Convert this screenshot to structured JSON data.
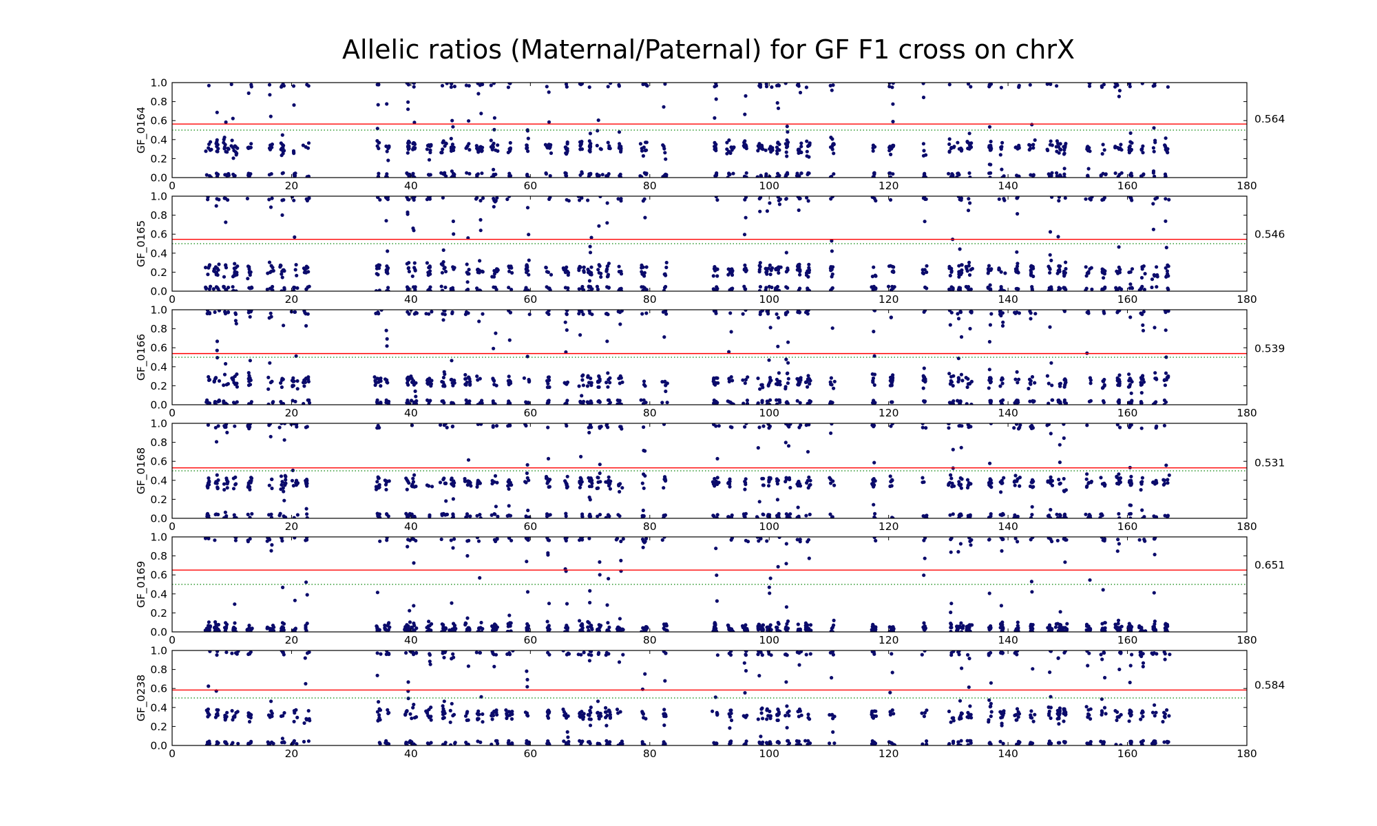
{
  "chart_data": {
    "type": "scatter",
    "title": "Allelic ratios (Maternal/Paternal) for GF F1 cross on chrX",
    "xlim": [
      0,
      180
    ],
    "ylim": [
      0.0,
      1.0
    ],
    "x_ticks": [
      "0",
      "20",
      "40",
      "60",
      "80",
      "100",
      "120",
      "140",
      "160",
      "180"
    ],
    "y_ticks": [
      "0.0",
      "0.2",
      "0.4",
      "0.6",
      "0.8",
      "1.0"
    ],
    "grid": false,
    "colors": {
      "points": "#0b0b6b",
      "mean_line": "#ff0000",
      "reference_line": "#008000",
      "axes": "#000000"
    },
    "reference_line_value": 0.5,
    "clusters_x": [
      6,
      7.5,
      9,
      10.5,
      13,
      16.5,
      18.5,
      20.5,
      22.5,
      34.5,
      36,
      39.5,
      40.5,
      43,
      45.5,
      47,
      49.5,
      51.5,
      54,
      56.5,
      59.5,
      63,
      66,
      68.5,
      70,
      71.5,
      73,
      75,
      79,
      82.5,
      91,
      93.5,
      96,
      98.5,
      100,
      101.5,
      103,
      105,
      106.5,
      110.5,
      117.5,
      120.5,
      126,
      130.5,
      132,
      133.5,
      137,
      139,
      141.5,
      144,
      147,
      148.5,
      149.5,
      153.5,
      156,
      158.5,
      160.5,
      162.5,
      164.5,
      166.5
    ],
    "series": [
      {
        "name": "GF_0164",
        "mean_ratio": 0.564,
        "mean_label": "0.564",
        "cluster_center": 0.32
      },
      {
        "name": "GF_0165",
        "mean_ratio": 0.546,
        "mean_label": "0.546",
        "cluster_center": 0.22
      },
      {
        "name": "GF_0166",
        "mean_ratio": 0.539,
        "mean_label": "0.539",
        "cluster_center": 0.25
      },
      {
        "name": "GF_0168",
        "mean_ratio": 0.531,
        "mean_label": "0.531",
        "cluster_center": 0.38
      },
      {
        "name": "GF_0169",
        "mean_ratio": 0.651,
        "mean_label": "0.651",
        "cluster_center": 0.04
      },
      {
        "name": "GF_0238",
        "mean_ratio": 0.584,
        "mean_label": "0.584",
        "cluster_center": 0.33
      }
    ]
  }
}
